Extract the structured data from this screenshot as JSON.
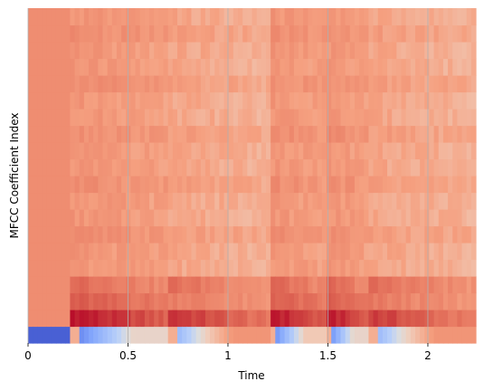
{
  "chart_data": {
    "type": "heatmap",
    "title": "",
    "xlabel": "Time",
    "ylabel": "MFCC Coefficient Index",
    "xlim": [
      0,
      2.24
    ],
    "xticks": [
      {
        "value": 0,
        "label": "0"
      },
      {
        "value": 0.5,
        "label": "0.5"
      },
      {
        "value": 1,
        "label": "1"
      },
      {
        "value": 1.5,
        "label": "1.5"
      },
      {
        "value": 2,
        "label": "2"
      }
    ],
    "yticks": [],
    "grid": true,
    "colormap": "coolwarm",
    "n_coefficients": 20,
    "frames_per_second": 43,
    "value_range": [
      0,
      1
    ],
    "segments": [
      {
        "t_start": 0.0,
        "t_end": 0.22,
        "type": "silence",
        "row0": 0.08,
        "upper": 0.7,
        "row1": 0.7,
        "row2": 0.7,
        "row3": 0.7
      },
      {
        "t_start": 0.22,
        "t_end": 0.71,
        "type": "note",
        "row0": 0.15,
        "upper": 0.68,
        "row1": 0.98,
        "row2": 0.82,
        "row3": 0.8
      },
      {
        "t_start": 0.71,
        "t_end": 1.22,
        "type": "note",
        "row0": 0.3,
        "upper": 0.64,
        "row1": 0.92,
        "row2": 0.75,
        "row3": 0.78
      },
      {
        "t_start": 1.22,
        "t_end": 1.49,
        "type": "note",
        "row0": 0.18,
        "upper": 0.68,
        "row1": 0.98,
        "row2": 0.82,
        "row3": 0.8
      },
      {
        "t_start": 1.49,
        "t_end": 1.71,
        "type": "note",
        "row0": 0.15,
        "upper": 0.68,
        "row1": 0.98,
        "row2": 0.82,
        "row3": 0.8
      },
      {
        "t_start": 1.71,
        "t_end": 2.24,
        "type": "note",
        "row0": 0.3,
        "upper": 0.64,
        "row1": 0.9,
        "row2": 0.75,
        "row3": 0.78
      }
    ]
  }
}
